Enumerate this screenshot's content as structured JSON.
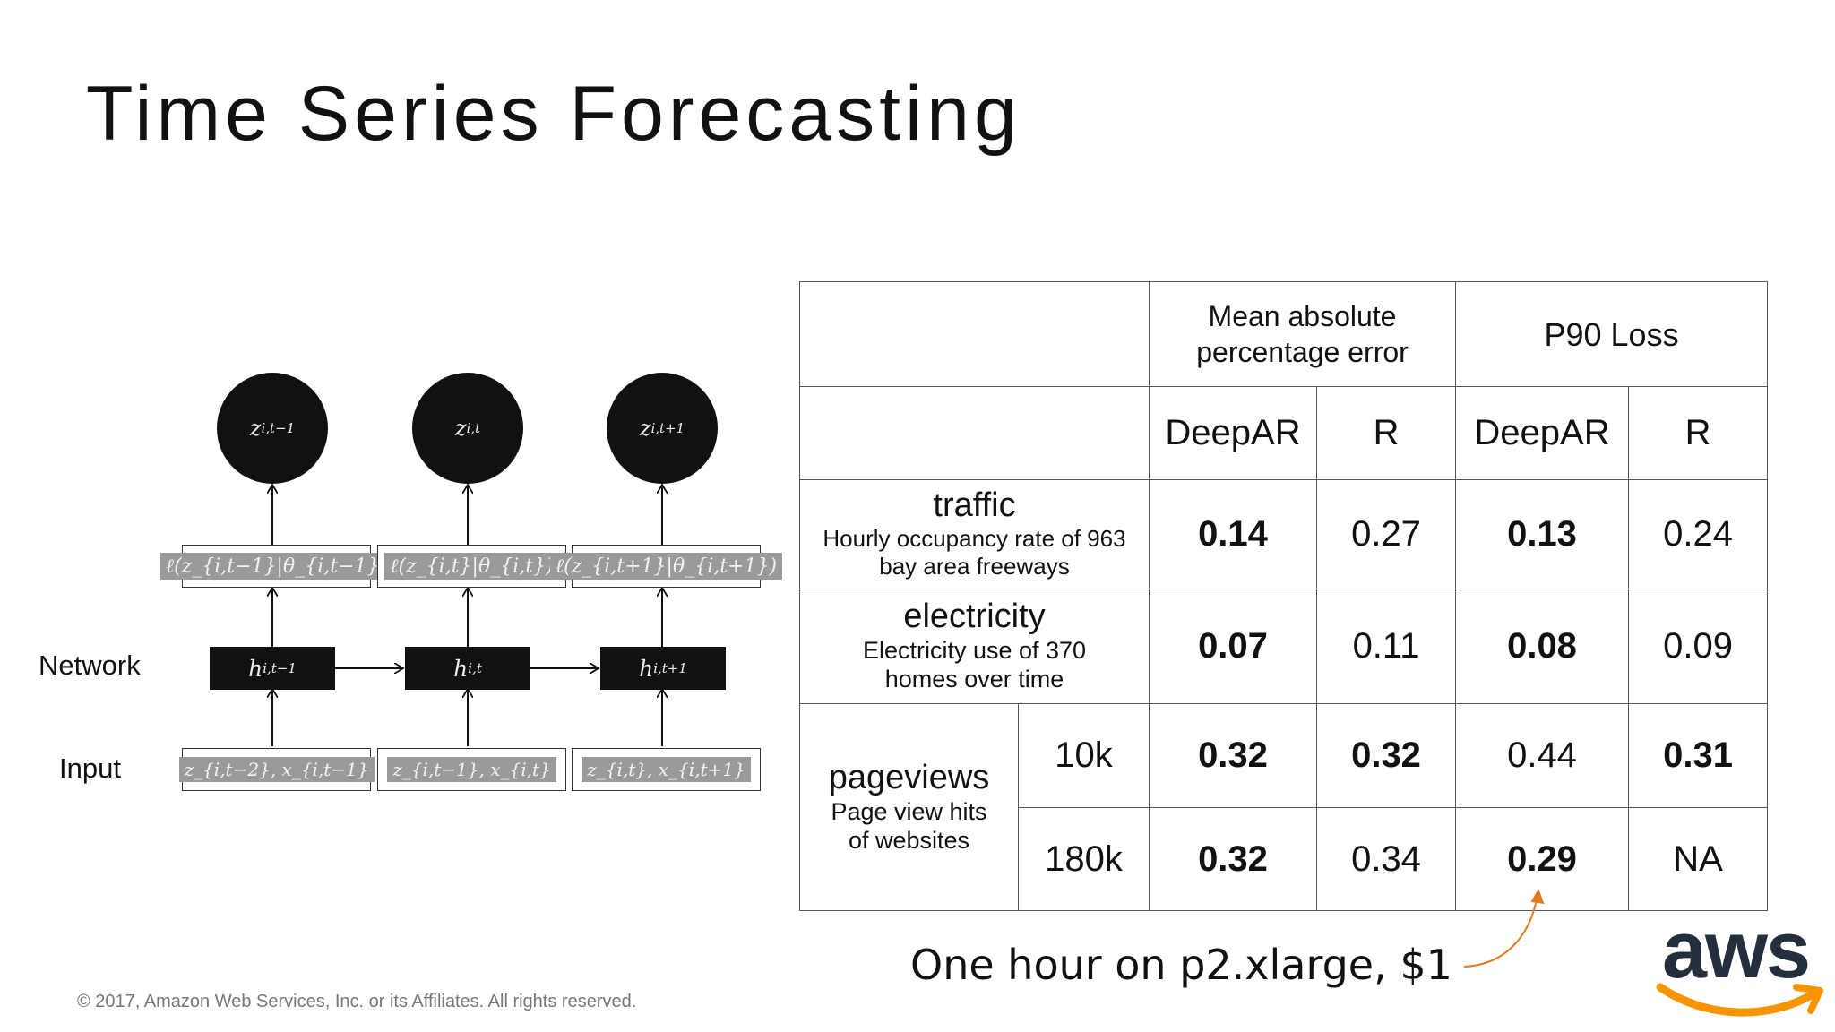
{
  "title": "Time Series Forecasting",
  "diagram": {
    "row_network": "Network",
    "row_input": "Input",
    "outputs": [
      {
        "base": "z",
        "sub": "i,t−1"
      },
      {
        "base": "z",
        "sub": "i,t"
      },
      {
        "base": "z",
        "sub": "i,t+1"
      }
    ],
    "likelihoods": [
      "ℓ(z_{i,t−1}|θ_{i,t−1})",
      "ℓ(z_{i,t}|θ_{i,t})",
      "ℓ(z_{i,t+1}|θ_{i,t+1})"
    ],
    "hidden": [
      {
        "base": "h",
        "sub": "i,t−1"
      },
      {
        "base": "h",
        "sub": "i,t"
      },
      {
        "base": "h",
        "sub": "i,t+1"
      }
    ],
    "inputs": [
      "z_{i,t−2}, x_{i,t−1}",
      "z_{i,t−1}, x_{i,t}",
      "z_{i,t}, x_{i,t+1}"
    ]
  },
  "table": {
    "header_mape": "Mean absolute percentage error",
    "header_p90": "P90 Loss",
    "sub_deepar": "DeepAR",
    "sub_r": "R",
    "traffic": {
      "name": "traffic",
      "desc": "Hourly occupancy rate of 963 bay area freeways",
      "mape_deepar": "0.14",
      "mape_r": "0.27",
      "p90_deepar": "0.13",
      "p90_r": "0.24"
    },
    "electricity": {
      "name": "electricity",
      "desc": "Electricity use of 370 homes over time",
      "mape_deepar": "0.07",
      "mape_r": "0.11",
      "p90_deepar": "0.08",
      "p90_r": "0.09"
    },
    "pageviews": {
      "name": "pageviews",
      "desc": "Page view hits of websites",
      "rows": [
        {
          "size": "10k",
          "mape_deepar": "0.32",
          "mape_r": "0.32",
          "p90_deepar": "0.44",
          "p90_r": "0.31"
        },
        {
          "size": "180k",
          "mape_deepar": "0.32",
          "mape_r": "0.34",
          "p90_deepar": "0.29",
          "p90_r": "NA"
        }
      ]
    }
  },
  "note": "One hour on p2.xlarge, $1",
  "copyright": "© 2017, Amazon Web Services, Inc. or its Affiliates. All rights reserved.",
  "logo": {
    "text": "aws",
    "accent": "#f79400",
    "ink": "#232f3e"
  }
}
